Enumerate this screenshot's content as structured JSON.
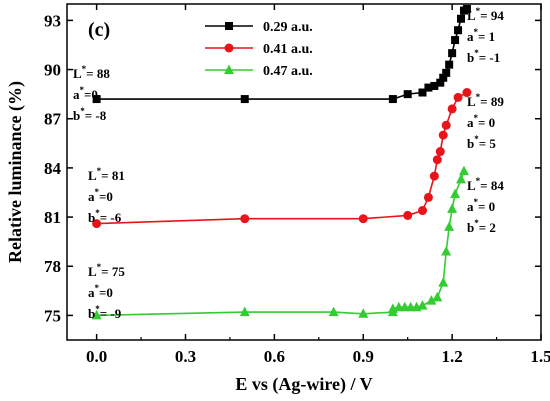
{
  "chart_data": {
    "type": "line",
    "panel_label": "(c)",
    "xlabel": "E vs (Ag-wire) / V",
    "ylabel": "Relative luminance (%)",
    "xlim": [
      -0.1,
      1.5
    ],
    "ylim": [
      73.5,
      94
    ],
    "x_ticks": [
      "0.0",
      "0.3",
      "0.6",
      "0.9",
      "1.2",
      "1.5"
    ],
    "x_tick_values": [
      0.0,
      0.3,
      0.6,
      0.9,
      1.2,
      1.5
    ],
    "y_ticks": [
      "75",
      "78",
      "81",
      "84",
      "87",
      "90",
      "93"
    ],
    "y_tick_values": [
      75,
      78,
      81,
      84,
      87,
      90,
      93
    ],
    "legend_position": "top-center",
    "series": [
      {
        "name": "0.29 a.u.",
        "color": "#000000",
        "marker": "square",
        "points": [
          [
            0.0,
            88.2
          ],
          [
            0.5,
            88.2
          ],
          [
            1.0,
            88.2
          ],
          [
            1.05,
            88.5
          ],
          [
            1.1,
            88.6
          ],
          [
            1.12,
            88.9
          ],
          [
            1.14,
            89.0
          ],
          [
            1.16,
            89.2
          ],
          [
            1.17,
            89.5
          ],
          [
            1.18,
            89.8
          ],
          [
            1.19,
            90.3
          ],
          [
            1.2,
            91.0
          ],
          [
            1.21,
            91.8
          ],
          [
            1.22,
            92.4
          ],
          [
            1.23,
            93.1
          ],
          [
            1.24,
            93.6
          ],
          [
            1.25,
            93.7
          ]
        ]
      },
      {
        "name": "0.41 a.u.",
        "color": "#e8141a",
        "marker": "circle",
        "points": [
          [
            0.0,
            80.6
          ],
          [
            0.5,
            80.9
          ],
          [
            0.9,
            80.9
          ],
          [
            1.05,
            81.1
          ],
          [
            1.1,
            81.4
          ],
          [
            1.12,
            82.2
          ],
          [
            1.14,
            83.5
          ],
          [
            1.15,
            84.5
          ],
          [
            1.16,
            85.0
          ],
          [
            1.17,
            86.0
          ],
          [
            1.18,
            86.6
          ],
          [
            1.2,
            87.6
          ],
          [
            1.22,
            88.3
          ],
          [
            1.25,
            88.6
          ]
        ]
      },
      {
        "name": "0.47 a.u.",
        "color": "#33cc33",
        "marker": "triangle",
        "points": [
          [
            0.0,
            75.0
          ],
          [
            0.5,
            75.2
          ],
          [
            0.8,
            75.2
          ],
          [
            0.9,
            75.1
          ],
          [
            1.0,
            75.2
          ],
          [
            1.0,
            75.4
          ],
          [
            1.02,
            75.5
          ],
          [
            1.04,
            75.5
          ],
          [
            1.06,
            75.5
          ],
          [
            1.08,
            75.5
          ],
          [
            1.1,
            75.6
          ],
          [
            1.13,
            75.9
          ],
          [
            1.15,
            76.1
          ],
          [
            1.17,
            77.0
          ],
          [
            1.18,
            78.9
          ],
          [
            1.19,
            80.4
          ],
          [
            1.2,
            81.5
          ],
          [
            1.21,
            82.4
          ],
          [
            1.23,
            83.3
          ],
          [
            1.24,
            83.8
          ]
        ]
      }
    ],
    "annotations": [
      {
        "lines": [
          [
            "L",
            "*",
            "= 88"
          ],
          [
            "a",
            "*",
            "=0"
          ],
          [
            "b",
            "*",
            "= -8"
          ]
        ]
      },
      {
        "lines": [
          [
            "L",
            "*",
            "= 81"
          ],
          [
            "a",
            "*",
            "=0"
          ],
          [
            "b",
            "*",
            "= -6"
          ]
        ]
      },
      {
        "lines": [
          [
            "L",
            "*",
            "= 75"
          ],
          [
            "a",
            "*",
            "=0"
          ],
          [
            "b",
            "*",
            "= -9"
          ]
        ]
      },
      {
        "lines": [
          [
            "L",
            "*",
            "= 94"
          ],
          [
            "a",
            "*",
            "= 1"
          ],
          [
            "b",
            "*",
            "= -1"
          ]
        ]
      },
      {
        "lines": [
          [
            "L",
            "*",
            "= 89"
          ],
          [
            "a",
            "*",
            "= 0"
          ],
          [
            "b",
            "*",
            "= 5"
          ]
        ]
      },
      {
        "lines": [
          [
            "L",
            "*",
            "= 84"
          ],
          [
            "a",
            "*",
            "= 0"
          ],
          [
            "b",
            "*",
            "= 2"
          ]
        ]
      }
    ]
  }
}
